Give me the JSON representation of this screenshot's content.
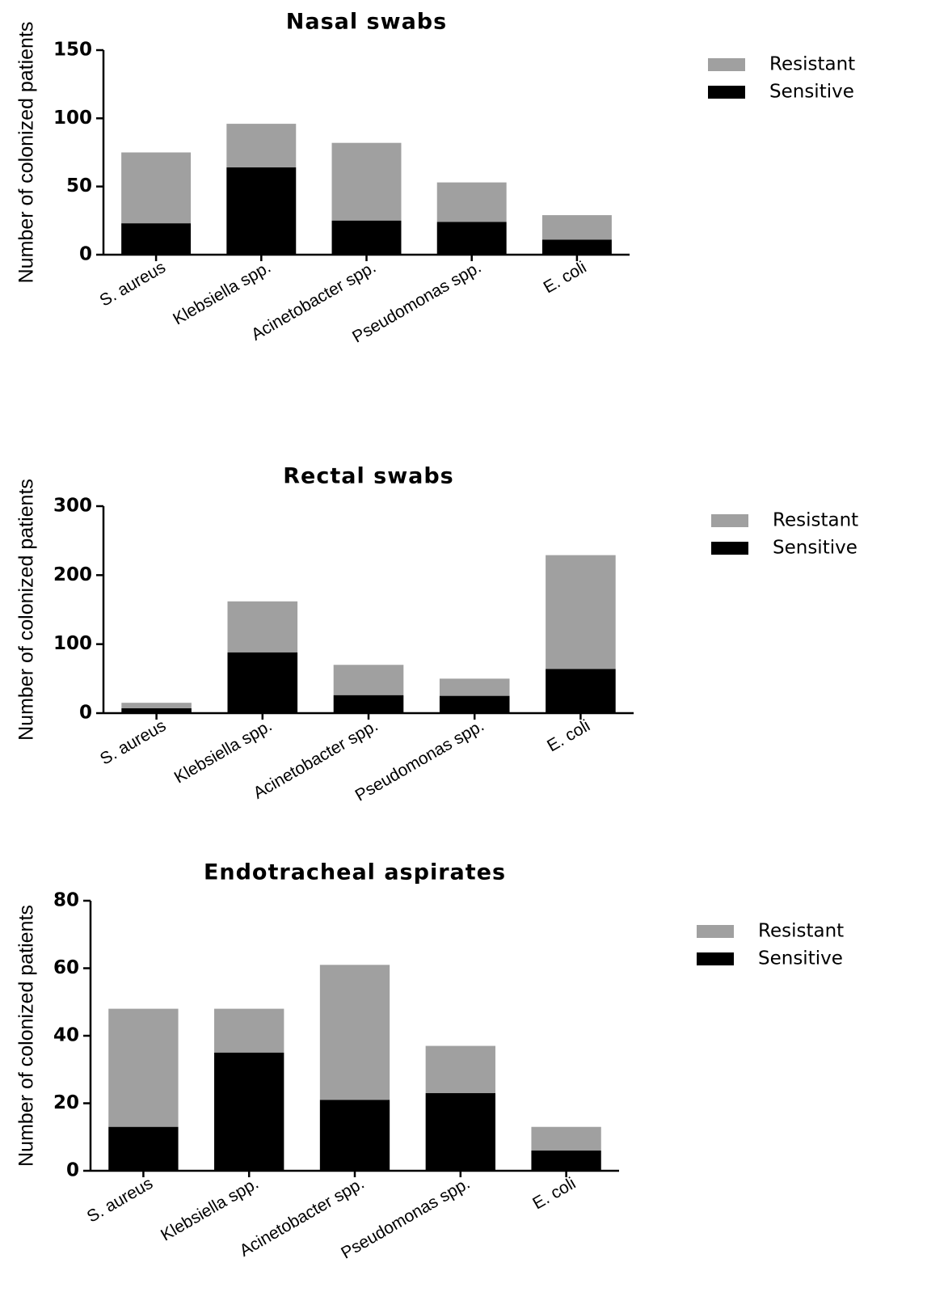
{
  "chart_data": [
    {
      "type": "bar",
      "stacked": true,
      "title": "Nasal swabs",
      "ylabel": "Number of colonized patients",
      "xlabel": "",
      "ylim": [
        0,
        150
      ],
      "yticks": [
        0,
        50,
        100,
        150
      ],
      "categories": [
        "S. aureus",
        "Klebsiella spp.",
        "Acinetobacter spp.",
        "Pseudomonas spp.",
        "E. coli"
      ],
      "series": [
        {
          "name": "Sensitive",
          "color": "#000000",
          "values": [
            23,
            64,
            25,
            24,
            11
          ]
        },
        {
          "name": "Resistant",
          "color": "#a0a0a0",
          "values": [
            52,
            32,
            57,
            29,
            18
          ]
        }
      ],
      "legend": {
        "position": "top-right",
        "items": [
          "Resistant",
          "Sensitive"
        ]
      },
      "grid": false
    },
    {
      "type": "bar",
      "stacked": true,
      "title": "Rectal swabs",
      "ylabel": "Number of colonized patients",
      "xlabel": "",
      "ylim": [
        0,
        300
      ],
      "yticks": [
        0,
        100,
        200,
        300
      ],
      "categories": [
        "S. aureus",
        "Klebsiella spp.",
        "Acinetobacter spp.",
        "Pseudomonas spp.",
        "E. coli"
      ],
      "series": [
        {
          "name": "Sensitive",
          "color": "#000000",
          "values": [
            7,
            88,
            26,
            25,
            64
          ]
        },
        {
          "name": "Resistant",
          "color": "#a0a0a0",
          "values": [
            8,
            74,
            44,
            25,
            165
          ]
        }
      ],
      "legend": {
        "position": "top-right",
        "items": [
          "Resistant",
          "Sensitive"
        ]
      },
      "grid": false
    },
    {
      "type": "bar",
      "stacked": true,
      "title": "Endotracheal aspirates",
      "ylabel": "Number of colonized patients",
      "xlabel": "",
      "ylim": [
        0,
        80
      ],
      "yticks": [
        0,
        20,
        40,
        60,
        80
      ],
      "categories": [
        "S. aureus",
        "Klebsiella spp.",
        "Acinetobacter spp.",
        "Pseudomonas spp.",
        "E. coli"
      ],
      "series": [
        {
          "name": "Sensitive",
          "color": "#000000",
          "values": [
            13,
            35,
            21,
            23,
            6
          ]
        },
        {
          "name": "Resistant",
          "color": "#a0a0a0",
          "values": [
            35,
            13,
            40,
            14,
            7
          ]
        }
      ],
      "legend": {
        "position": "top-right",
        "items": [
          "Resistant",
          "Sensitive"
        ]
      },
      "grid": false
    }
  ]
}
